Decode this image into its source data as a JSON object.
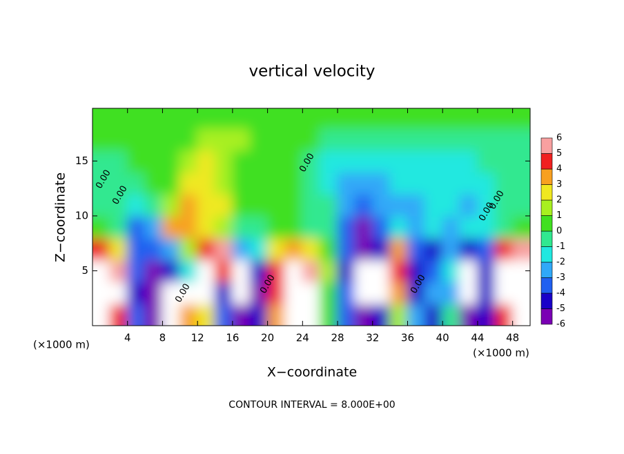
{
  "chart_data": {
    "type": "heatmap",
    "title": "vertical velocity",
    "xlabel": "X−coordinate",
    "ylabel": "Z−coordinate",
    "x_unit_label": "(×1000 m)",
    "footnote": "CONTOUR INTERVAL = 8.000E+00",
    "x": [
      1,
      3,
      5,
      7,
      9,
      11,
      13,
      15,
      17,
      19,
      21,
      23,
      25,
      27,
      29,
      31,
      33,
      35,
      37,
      39,
      41,
      43,
      45,
      47,
      49
    ],
    "y": [
      1,
      3,
      5,
      7,
      9,
      11,
      13,
      15,
      17,
      19
    ],
    "values": [
      [
        7,
        5,
        -3,
        -5,
        -8,
        4,
        3,
        -3,
        -6,
        -4,
        4,
        7,
        7,
        1,
        -3,
        -5,
        -4,
        2,
        -2,
        -4,
        0,
        -5,
        -4,
        5,
        7
      ],
      [
        9,
        7,
        -4,
        -5,
        -8,
        8,
        9,
        -4,
        -9,
        -5,
        5,
        8,
        9,
        1,
        -3,
        -8,
        -8,
        4,
        -4,
        -2,
        -2,
        -7,
        -4,
        7,
        9
      ],
      [
        8,
        6,
        -3,
        -5,
        -4,
        -1,
        9,
        5,
        -8,
        -4,
        5,
        7,
        6,
        2,
        -4,
        -9,
        -7,
        5,
        -4,
        -3,
        -1,
        -7,
        -4,
        7,
        9
      ],
      [
        5,
        3,
        -3,
        -3,
        -2,
        2,
        5,
        6,
        -2,
        -1,
        3,
        4,
        3,
        1,
        -3,
        -6,
        -4,
        4,
        -3,
        -4,
        -2,
        -4,
        -3,
        5,
        6
      ],
      [
        1,
        0,
        -3,
        -2,
        4,
        4,
        3,
        2,
        0,
        0,
        1,
        1,
        0,
        0,
        -3,
        -5,
        -3,
        -1,
        -2,
        -1,
        -2,
        -1,
        -1,
        0,
        1
      ],
      [
        0,
        0,
        -1,
        0,
        2,
        4,
        3,
        3,
        1,
        1,
        1,
        1,
        0,
        0,
        -2,
        -3,
        -2,
        -2,
        -2,
        -1,
        -1,
        -2,
        -1,
        0,
        0
      ],
      [
        0,
        0,
        0,
        1,
        1,
        3,
        3,
        2,
        1,
        1,
        1,
        1,
        0,
        -1,
        -2,
        -2,
        -2,
        -1,
        -1,
        -1,
        -1,
        -1,
        -1,
        0,
        0
      ],
      [
        0,
        0,
        1,
        1,
        1,
        2,
        3,
        2,
        1,
        1,
        1,
        1,
        0,
        -1,
        -1,
        -1,
        -1,
        -1,
        -1,
        -1,
        -1,
        -1,
        0,
        0,
        0
      ],
      [
        1,
        1,
        1,
        1,
        1,
        1,
        2,
        2,
        2,
        1,
        1,
        1,
        1,
        0,
        0,
        0,
        0,
        0,
        0,
        0,
        0,
        0,
        0,
        0,
        0
      ],
      [
        1,
        1,
        1,
        1,
        1,
        1,
        1,
        1,
        1,
        1,
        1,
        1,
        1,
        1,
        0.5,
        0.5,
        0.5,
        0.5,
        0.5,
        0.5,
        0.5,
        0.5,
        0.5,
        0.5,
        0.5
      ]
    ],
    "xlim": [
      0,
      50
    ],
    "ylim": [
      0,
      19.8
    ],
    "xticks": [
      4,
      8,
      12,
      16,
      20,
      24,
      28,
      32,
      36,
      40,
      44,
      48
    ],
    "yticks": [
      5,
      10,
      15
    ],
    "levels": [
      -6,
      -5,
      -4,
      -3,
      -2,
      -1,
      0,
      1,
      2,
      3,
      4,
      5,
      6
    ],
    "colors": [
      "#7a00b4",
      "#1a00c8",
      "#2060f0",
      "#30a8f8",
      "#20e8e0",
      "#30e890",
      "#40e020",
      "#a8f020",
      "#f0e820",
      "#f8a020",
      "#f02020",
      "#f8a0a0"
    ],
    "out_of_range_color": "#ffffff",
    "contour_labels": [
      "0.00",
      "0.00",
      "0.00",
      "0.00",
      "0.00",
      "0.00",
      "0.00",
      "0.00"
    ]
  }
}
